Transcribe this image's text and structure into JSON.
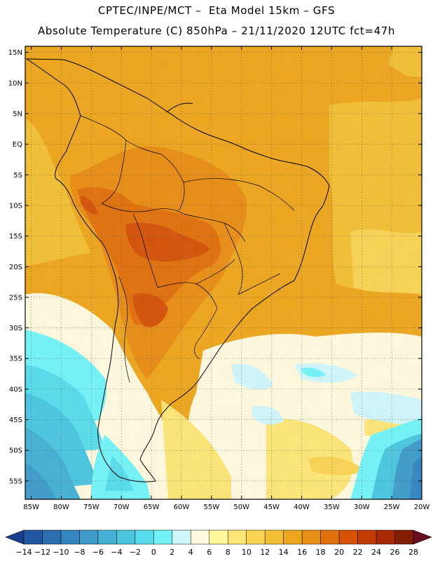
{
  "header": {
    "line1": "CPTEC/INPE/MCT –  Eta Model 15km – GFS",
    "line2": "Absolute Temperature (C) 850hPa – 21/11/2020 12UTC fct=47h"
  },
  "map": {
    "lon_range": [
      -86,
      -20
    ],
    "lat_range": [
      -58,
      16
    ],
    "lon_ticks": [
      {
        "value": -85,
        "label": "85W"
      },
      {
        "value": -80,
        "label": "80W"
      },
      {
        "value": -75,
        "label": "75W"
      },
      {
        "value": -70,
        "label": "70W"
      },
      {
        "value": -65,
        "label": "65W"
      },
      {
        "value": -60,
        "label": "60W"
      },
      {
        "value": -55,
        "label": "55W"
      },
      {
        "value": -50,
        "label": "50W"
      },
      {
        "value": -45,
        "label": "45W"
      },
      {
        "value": -40,
        "label": "40W"
      },
      {
        "value": -35,
        "label": "35W"
      },
      {
        "value": -30,
        "label": "30W"
      },
      {
        "value": -25,
        "label": "25W"
      },
      {
        "value": -20,
        "label": "20W"
      }
    ],
    "lat_ticks": [
      {
        "value": 15,
        "label": "15N"
      },
      {
        "value": 10,
        "label": "10N"
      },
      {
        "value": 5,
        "label": "5N"
      },
      {
        "value": 0,
        "label": "EQ"
      },
      {
        "value": -5,
        "label": "5S"
      },
      {
        "value": -10,
        "label": "10S"
      },
      {
        "value": -15,
        "label": "15S"
      },
      {
        "value": -20,
        "label": "20S"
      },
      {
        "value": -25,
        "label": "25S"
      },
      {
        "value": -30,
        "label": "30S"
      },
      {
        "value": -35,
        "label": "35S"
      },
      {
        "value": -40,
        "label": "40S"
      },
      {
        "value": -45,
        "label": "45S"
      },
      {
        "value": -50,
        "label": "50S"
      },
      {
        "value": -55,
        "label": "55S"
      }
    ],
    "gridlines": "dotted"
  },
  "colorbar": {
    "levels": [
      "-14",
      "-12",
      "-10",
      "-8",
      "-6",
      "-4",
      "-2",
      "0",
      "2",
      "4",
      "6",
      "8",
      "10",
      "12",
      "14",
      "16",
      "18",
      "20",
      "22",
      "24",
      "26",
      "28"
    ],
    "colors": [
      "#1a3f8a",
      "#2356a0",
      "#2b6fb0",
      "#3585bf",
      "#3f9bc9",
      "#46b1d4",
      "#4cc6df",
      "#58dceb",
      "#73f3f7",
      "#cff6fb",
      "#fff9df",
      "#fff799",
      "#fde577",
      "#f8d354",
      "#f2bf35",
      "#eda61e",
      "#e88d16",
      "#e0710e",
      "#d45309",
      "#c23c05",
      "#a82803",
      "#831d03",
      "#6b0f1f"
    ]
  }
}
